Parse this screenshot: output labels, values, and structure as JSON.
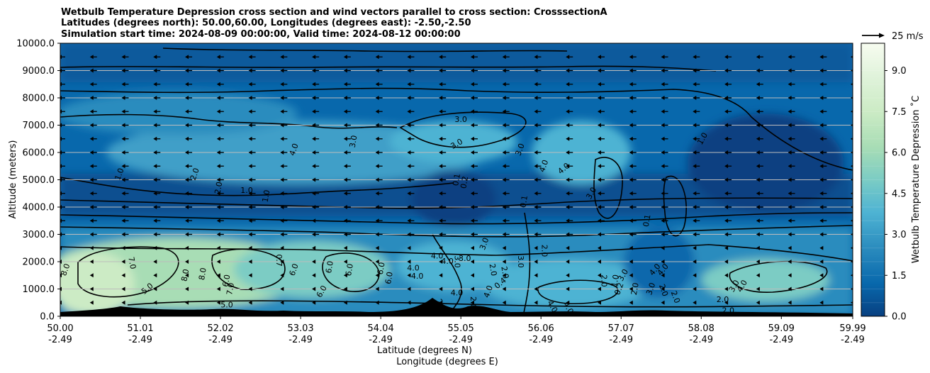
{
  "title": {
    "line1": "Wetbulb Temperature Depression cross section and wind vectors parallel to cross section: CrosssectionA",
    "line2": "Latitudes (degrees north): 50.00,60.00, Longitudes (degrees east): -2.50,-2.50",
    "line3": "Simulation start time: 2024-08-09 00:00:00, Valid time: 2024-08-12 00:00:00"
  },
  "quiver_key": {
    "label": "25 m/s"
  },
  "chart_data": {
    "type": "contour",
    "ylabel": "Altitude (meters)",
    "xlabel_line1": "Latitude (degrees N)",
    "xlabel_line2": "Longitude (degrees E)",
    "colorbar_label": "Wetbulb Temperature Depression ˚C",
    "colormap": "GnBu_r",
    "ylim": [
      0,
      10000
    ],
    "xlim": [
      50.0,
      59.99
    ],
    "grid": "horizontal",
    "y_ticks": [
      {
        "value": 0,
        "label": "0.0"
      },
      {
        "value": 1000,
        "label": "1000.0"
      },
      {
        "value": 2000,
        "label": "2000.0"
      },
      {
        "value": 3000,
        "label": "3000.0"
      },
      {
        "value": 4000,
        "label": "4000.0"
      },
      {
        "value": 5000,
        "label": "5000.0"
      },
      {
        "value": 6000,
        "label": "6000.0"
      },
      {
        "value": 7000,
        "label": "7000.0"
      },
      {
        "value": 8000,
        "label": "8000.0"
      },
      {
        "value": 9000,
        "label": "9000.0"
      },
      {
        "value": 10000,
        "label": "10000.0"
      }
    ],
    "x_ticks": [
      {
        "value": 50.0,
        "lat": "50.00",
        "lon": "-2.49"
      },
      {
        "value": 51.01,
        "lat": "51.01",
        "lon": "-2.49"
      },
      {
        "value": 52.02,
        "lat": "52.02",
        "lon": "-2.49"
      },
      {
        "value": 53.03,
        "lat": "53.03",
        "lon": "-2.49"
      },
      {
        "value": 54.04,
        "lat": "54.04",
        "lon": "-2.49"
      },
      {
        "value": 55.05,
        "lat": "55.05",
        "lon": "-2.49"
      },
      {
        "value": 56.06,
        "lat": "56.06",
        "lon": "-2.49"
      },
      {
        "value": 57.07,
        "lat": "57.07",
        "lon": "-2.49"
      },
      {
        "value": 58.08,
        "lat": "58.08",
        "lon": "-2.49"
      },
      {
        "value": 59.09,
        "lat": "59.09",
        "lon": "-2.49"
      },
      {
        "value": 59.99,
        "lat": "59.99",
        "lon": "-2.49"
      }
    ],
    "colorbar_ticks": [
      {
        "value": 0.0,
        "label": "0.0"
      },
      {
        "value": 1.5,
        "label": "1.5"
      },
      {
        "value": 3.0,
        "label": "3.0"
      },
      {
        "value": 4.5,
        "label": "4.5"
      },
      {
        "value": 6.0,
        "label": "6.0"
      },
      {
        "value": 7.5,
        "label": "7.5"
      },
      {
        "value": 9.0,
        "label": "9.0"
      }
    ],
    "colorbar_range": [
      0,
      10
    ],
    "colors": [
      "#084081",
      "#0868ac",
      "#2b8cbe",
      "#4eb3d3",
      "#7bccc4",
      "#a8ddb5",
      "#ccebc5",
      "#e0f3db",
      "#f7fcf0"
    ],
    "contour_levels": [
      1.0,
      2.0,
      3.0,
      4.0,
      5.0,
      6.0,
      7.0,
      8.0
    ],
    "contour_labels": [
      {
        "x": 50.07,
        "y": 1700,
        "label": "8.0",
        "rot": -70
      },
      {
        "x": 50.9,
        "y": 1950,
        "label": "7.0",
        "rot": 80
      },
      {
        "x": 51.1,
        "y": 1000,
        "label": "5.0",
        "rot": -40
      },
      {
        "x": 51.58,
        "y": 1500,
        "label": "8.0",
        "rot": -80
      },
      {
        "x": 51.8,
        "y": 1550,
        "label": "8.0",
        "rot": -80
      },
      {
        "x": 52.1,
        "y": 1300,
        "label": "6.0",
        "rot": -80
      },
      {
        "x": 52.15,
        "y": 1000,
        "label": "7.0",
        "rot": -80
      },
      {
        "x": 52.1,
        "y": 400,
        "label": "5.0",
        "rot": 0
      },
      {
        "x": 52.75,
        "y": 2050,
        "label": "0.7",
        "rot": 90
      },
      {
        "x": 52.95,
        "y": 1700,
        "label": "6.0",
        "rot": -70
      },
      {
        "x": 53.4,
        "y": 1800,
        "label": "6.0",
        "rot": -80
      },
      {
        "x": 53.3,
        "y": 900,
        "label": "6.0",
        "rot": -60
      },
      {
        "x": 53.65,
        "y": 1700,
        "label": "6.0",
        "rot": -80
      },
      {
        "x": 54.05,
        "y": 1750,
        "label": "6.0",
        "rot": -80
      },
      {
        "x": 54.15,
        "y": 1400,
        "label": "6.0",
        "rot": -80
      },
      {
        "x": 54.45,
        "y": 1750,
        "label": "4.0",
        "rot": 0
      },
      {
        "x": 54.5,
        "y": 1450,
        "label": "4.0",
        "rot": 0
      },
      {
        "x": 54.75,
        "y": 2200,
        "label": "4.0",
        "rot": 0
      },
      {
        "x": 54.88,
        "y": 2000,
        "label": "4.0",
        "rot": 0
      },
      {
        "x": 55.0,
        "y": 2000,
        "label": "3.0",
        "rot": 90
      },
      {
        "x": 55.1,
        "y": 2100,
        "label": "3.0",
        "rot": 0
      },
      {
        "x": 55.35,
        "y": 2650,
        "label": "3.0",
        "rot": -70
      },
      {
        "x": 55.45,
        "y": 1700,
        "label": "2.0",
        "rot": 80
      },
      {
        "x": 55.6,
        "y": 1600,
        "label": "2.0",
        "rot": 80
      },
      {
        "x": 55.0,
        "y": 850,
        "label": "4.0",
        "rot": 0
      },
      {
        "x": 55.4,
        "y": 900,
        "label": "4.0",
        "rot": -70
      },
      {
        "x": 55.2,
        "y": 500,
        "label": "2.0",
        "rot": 90
      },
      {
        "x": 54.8,
        "y": 400,
        "label": "2.0",
        "rot": 60
      },
      {
        "x": 55.55,
        "y": 1200,
        "label": "0.4",
        "rot": -40
      },
      {
        "x": 56.4,
        "y": 300,
        "label": "4.0",
        "rot": 60
      },
      {
        "x": 56.2,
        "y": 350,
        "label": "4.0",
        "rot": 60
      },
      {
        "x": 56.1,
        "y": 2400,
        "label": "2.0",
        "rot": 90
      },
      {
        "x": 55.8,
        "y": 2000,
        "label": "3.0",
        "rot": 90
      },
      {
        "x": 56.85,
        "y": 1300,
        "label": "2.0",
        "rot": 90
      },
      {
        "x": 57.0,
        "y": 1300,
        "label": "1.0",
        "rot": -80
      },
      {
        "x": 57.05,
        "y": 1000,
        "label": "0.2",
        "rot": -70
      },
      {
        "x": 57.1,
        "y": 1500,
        "label": "3.0",
        "rot": -60
      },
      {
        "x": 57.25,
        "y": 1000,
        "label": "2.0",
        "rot": -80
      },
      {
        "x": 57.45,
        "y": 1000,
        "label": "3.0",
        "rot": -70
      },
      {
        "x": 57.5,
        "y": 1700,
        "label": "4.0",
        "rot": -50
      },
      {
        "x": 57.6,
        "y": 1700,
        "label": "4.0",
        "rot": -50
      },
      {
        "x": 57.6,
        "y": 950,
        "label": "2.0",
        "rot": 70
      },
      {
        "x": 57.75,
        "y": 700,
        "label": "2.0",
        "rot": 70
      },
      {
        "x": 58.5,
        "y": 1100,
        "label": "3.0",
        "rot": -60
      },
      {
        "x": 58.6,
        "y": 1100,
        "label": "4.0",
        "rot": -60
      },
      {
        "x": 58.35,
        "y": 600,
        "label": "2.0",
        "rot": 0
      },
      {
        "x": 58.42,
        "y": 200,
        "label": "2.0",
        "rot": 0
      },
      {
        "x": 55.05,
        "y": 7200,
        "label": "3.0",
        "rot": 0
      },
      {
        "x": 55.0,
        "y": 6300,
        "label": "3.0",
        "rot": -30
      },
      {
        "x": 55.0,
        "y": 5000,
        "label": "0.1",
        "rot": -80
      },
      {
        "x": 55.1,
        "y": 4900,
        "label": "0.2",
        "rot": -80
      },
      {
        "x": 55.8,
        "y": 6100,
        "label": "3.0",
        "rot": -70
      },
      {
        "x": 56.1,
        "y": 5500,
        "label": "4.0",
        "rot": -70
      },
      {
        "x": 56.35,
        "y": 5400,
        "label": "4.0",
        "rot": -40
      },
      {
        "x": 55.85,
        "y": 4200,
        "label": "0.1",
        "rot": -80
      },
      {
        "x": 56.7,
        "y": 4500,
        "label": "3.0",
        "rot": -60
      },
      {
        "x": 57.4,
        "y": 3500,
        "label": "0.1",
        "rot": -80
      },
      {
        "x": 58.1,
        "y": 6500,
        "label": "1.0",
        "rot": -60
      },
      {
        "x": 53.7,
        "y": 6400,
        "label": "3.0",
        "rot": -80
      },
      {
        "x": 52.95,
        "y": 6100,
        "label": "4.0",
        "rot": -70
      },
      {
        "x": 50.75,
        "y": 5200,
        "label": "1.0",
        "rot": -70
      },
      {
        "x": 51.7,
        "y": 5200,
        "label": "2.0",
        "rot": -70
      },
      {
        "x": 52.0,
        "y": 4700,
        "label": "2.0",
        "rot": -80
      },
      {
        "x": 52.35,
        "y": 4600,
        "label": "1.0",
        "rot": 0
      },
      {
        "x": 52.6,
        "y": 4400,
        "label": "1.0",
        "rot": -80
      }
    ],
    "vector_rows_y": [
      500,
      1000,
      1500,
      2000,
      2500,
      3000,
      3500,
      4000,
      4500,
      5000,
      5500,
      6000,
      6500,
      7000,
      7500,
      8000,
      8500,
      9000,
      9500
    ],
    "vector_cols_x": [
      50.0,
      50.4,
      50.8,
      51.2,
      51.6,
      52.0,
      52.4,
      52.8,
      53.2,
      53.6,
      54.0,
      54.4,
      54.8,
      55.2,
      55.6,
      56.0,
      56.4,
      56.8,
      57.2,
      57.6,
      58.0,
      58.4,
      58.8,
      59.2,
      59.6,
      59.99
    ]
  }
}
